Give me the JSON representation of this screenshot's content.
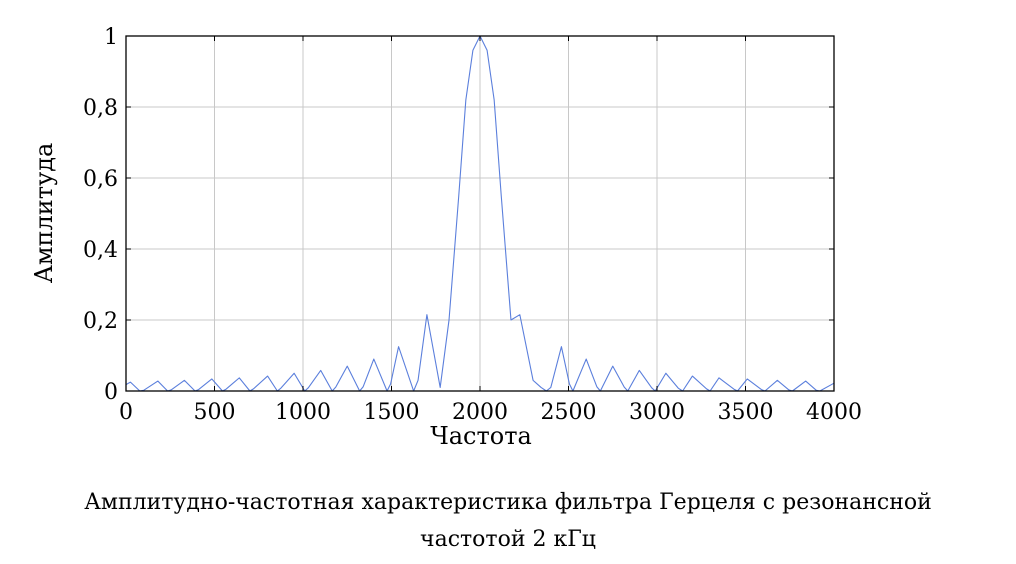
{
  "chart_data": {
    "type": "line",
    "title": "",
    "xlabel": "Частота",
    "ylabel": "Амплитуда",
    "xlim": [
      0,
      4000
    ],
    "ylim": [
      0,
      1
    ],
    "grid": true,
    "x_ticks": [
      0,
      500,
      1000,
      1500,
      2000,
      2500,
      3000,
      3500,
      4000
    ],
    "x_tick_labels": [
      "0",
      "500",
      "1000",
      "1500",
      "2000",
      "2500",
      "3000",
      "3500",
      "4000"
    ],
    "y_ticks": [
      0,
      0.2,
      0.4,
      0.6,
      0.8,
      1
    ],
    "y_tick_labels": [
      "0",
      "0,2",
      "0,4",
      "0,6",
      "0,8",
      "1"
    ],
    "series_color": "#5b7fdc",
    "center_frequency": 2000,
    "null_spacing": 155,
    "series": [
      {
        "name": "",
        "x": [
          0,
          25,
          78,
          100,
          180,
          235,
          255,
          330,
          390,
          410,
          485,
          545,
          565,
          640,
          700,
          720,
          800,
          855,
          875,
          950,
          1010,
          1030,
          1100,
          1165,
          1185,
          1250,
          1320,
          1340,
          1400,
          1475,
          1495,
          1540,
          1625,
          1650,
          1700,
          1775,
          1825,
          1880,
          1920,
          1960,
          2000,
          2040,
          2080,
          2120,
          2175,
          2225,
          2300,
          2345,
          2375,
          2400,
          2460,
          2505,
          2525,
          2600,
          2660,
          2680,
          2750,
          2815,
          2835,
          2900,
          2970,
          2990,
          3050,
          3120,
          3145,
          3200,
          3280,
          3300,
          3350,
          3435,
          3455,
          3510,
          3590,
          3610,
          3680,
          3745,
          3765,
          3840,
          3900,
          3920,
          4000
        ],
        "y": [
          0.018,
          0.025,
          0,
          0.002,
          0.028,
          0,
          0.003,
          0.03,
          0,
          0.004,
          0.034,
          0,
          0.005,
          0.037,
          0,
          0.006,
          0.042,
          0,
          0.008,
          0.05,
          0,
          0.009,
          0.058,
          0,
          0.011,
          0.07,
          0,
          0.012,
          0.09,
          0,
          0.02,
          0.125,
          0,
          0.03,
          0.215,
          0.01,
          0.2,
          0.55,
          0.82,
          0.96,
          1,
          0.96,
          0.82,
          0.55,
          0.2,
          0.215,
          0.03,
          0.01,
          0,
          0.01,
          0.125,
          0.02,
          0,
          0.09,
          0.012,
          0,
          0.07,
          0.011,
          0,
          0.058,
          0.009,
          0,
          0.05,
          0.008,
          0,
          0.042,
          0.006,
          0,
          0.037,
          0.005,
          0,
          0.034,
          0.004,
          0,
          0.03,
          0.003,
          0,
          0.028,
          0.002,
          0,
          0.022
        ]
      }
    ]
  },
  "caption": {
    "line1": "Амплитудно-частотная характеристика фильтра Герцеля с резонансной",
    "line2": "частотой 2 кГц"
  }
}
